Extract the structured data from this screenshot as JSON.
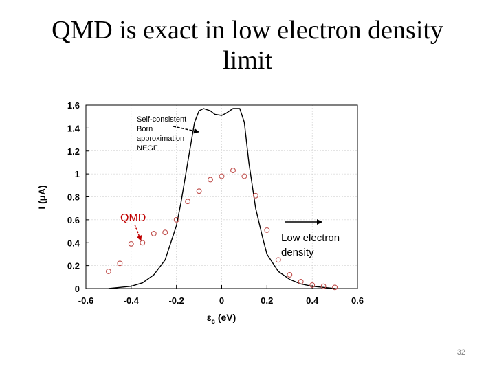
{
  "slide": {
    "title_line1": "QMD is exact in low electron density",
    "title_line2": "limit",
    "page_number": "32"
  },
  "chart_data": {
    "type": "line",
    "xlabel_main": "ε",
    "xlabel_sub": "c",
    "xlabel_unit": " (eV)",
    "ylabel": "I (µA)",
    "xlim": [
      -0.6,
      0.6
    ],
    "ylim": [
      0,
      1.6
    ],
    "x_ticks": [
      -0.6,
      -0.4,
      -0.2,
      0,
      0.2,
      0.4,
      0.6
    ],
    "y_ticks": [
      0,
      0.2,
      0.4,
      0.6,
      0.8,
      1,
      1.2,
      1.4,
      1.6
    ],
    "x_tick_labels": [
      "-0.6",
      "-0.4",
      "-0.2",
      "0",
      "0.2",
      "0.4",
      "0.6"
    ],
    "y_tick_labels": [
      "0",
      "0.2",
      "0.4",
      "0.6",
      "0.8",
      "1",
      "1.2",
      "1.4",
      "1.6"
    ],
    "grid": true,
    "series": [
      {
        "name": "Self-consistent Born approximation NEGF",
        "style": "line",
        "color": "#000000",
        "x": [
          -0.5,
          -0.45,
          -0.4,
          -0.35,
          -0.3,
          -0.25,
          -0.2,
          -0.18,
          -0.15,
          -0.12,
          -0.1,
          -0.08,
          -0.05,
          -0.03,
          0,
          0.02,
          0.05,
          0.08,
          0.1,
          0.12,
          0.15,
          0.18,
          0.2,
          0.25,
          0.3,
          0.35,
          0.4,
          0.45,
          0.5
        ],
        "y": [
          0,
          0.01,
          0.02,
          0.05,
          0.12,
          0.25,
          0.55,
          0.75,
          1.1,
          1.45,
          1.55,
          1.57,
          1.55,
          1.52,
          1.51,
          1.53,
          1.57,
          1.57,
          1.45,
          1.1,
          0.7,
          0.45,
          0.3,
          0.15,
          0.08,
          0.04,
          0.02,
          0.01,
          0
        ]
      },
      {
        "name": "QMD",
        "style": "markers",
        "color": "#c0504d",
        "x": [
          -0.5,
          -0.45,
          -0.4,
          -0.35,
          -0.3,
          -0.25,
          -0.2,
          -0.15,
          -0.1,
          -0.05,
          0,
          0.05,
          0.1,
          0.15,
          0.2,
          0.25,
          0.3,
          0.35,
          0.4,
          0.45,
          0.5
        ],
        "y": [
          0.15,
          0.22,
          0.39,
          0.4,
          0.48,
          0.49,
          0.6,
          0.76,
          0.85,
          0.95,
          0.98,
          1.03,
          0.98,
          0.81,
          0.51,
          0.25,
          0.12,
          0.06,
          0.03,
          0.02,
          0.01
        ]
      }
    ],
    "annotations": {
      "negf": {
        "line1": "Self-consistent",
        "line2": "Born",
        "line3": "approximation",
        "line4": "NEGF"
      },
      "qmd": "QMD",
      "low_density": {
        "line1": "Low electron",
        "line2": "density"
      }
    }
  }
}
